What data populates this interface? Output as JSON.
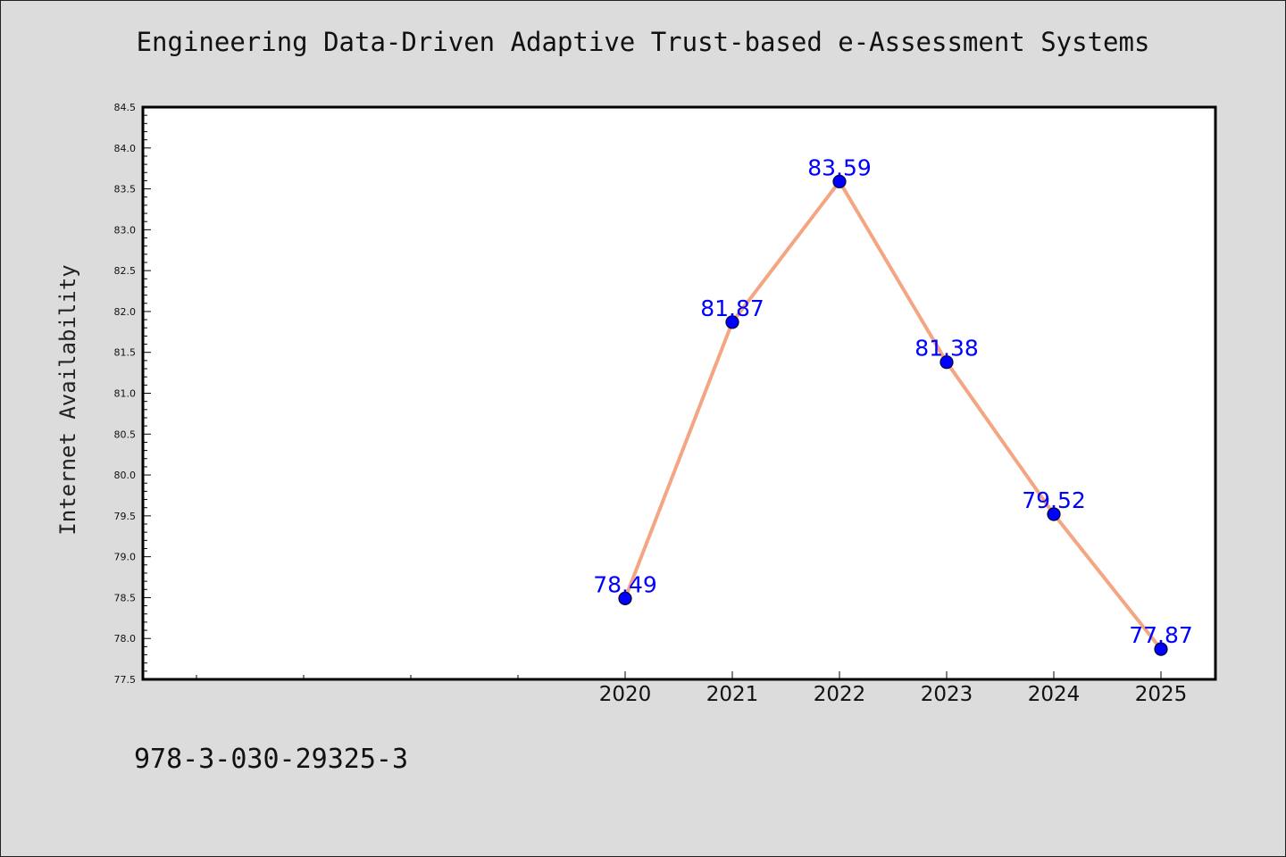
{
  "chart_data": {
    "type": "line",
    "title": "Engineering Data-Driven Adaptive Trust-based e-Assessment Systems",
    "xlabel": "",
    "ylabel": "Internet Availability",
    "categories": [
      "2020",
      "2021",
      "2022",
      "2023",
      "2024",
      "2025"
    ],
    "series": [
      {
        "values": [
          78.49,
          81.87,
          83.59,
          81.38,
          79.52,
          77.87
        ]
      }
    ],
    "data_labels": [
      "78.49",
      "81.87",
      "83.59",
      "81.38",
      "79.52",
      "77.87"
    ],
    "ylim": [
      77.5,
      84.5
    ],
    "yticks": [
      "77.5",
      "78.0",
      "78.5",
      "79.0",
      "79.5",
      "80.0",
      "80.5",
      "81.0",
      "81.5",
      "82.0",
      "82.5",
      "83.0",
      "83.5",
      "84.0",
      "84.5"
    ],
    "grid": false,
    "legend": "none",
    "colors": {
      "line": "#f4a582",
      "marker": "#0000ff",
      "data_label": "#0000ff",
      "plot_background": "#ffffff",
      "figure_background": "#dcdcdc"
    }
  },
  "footer": {
    "isbn": "978-3-030-29325-3"
  }
}
